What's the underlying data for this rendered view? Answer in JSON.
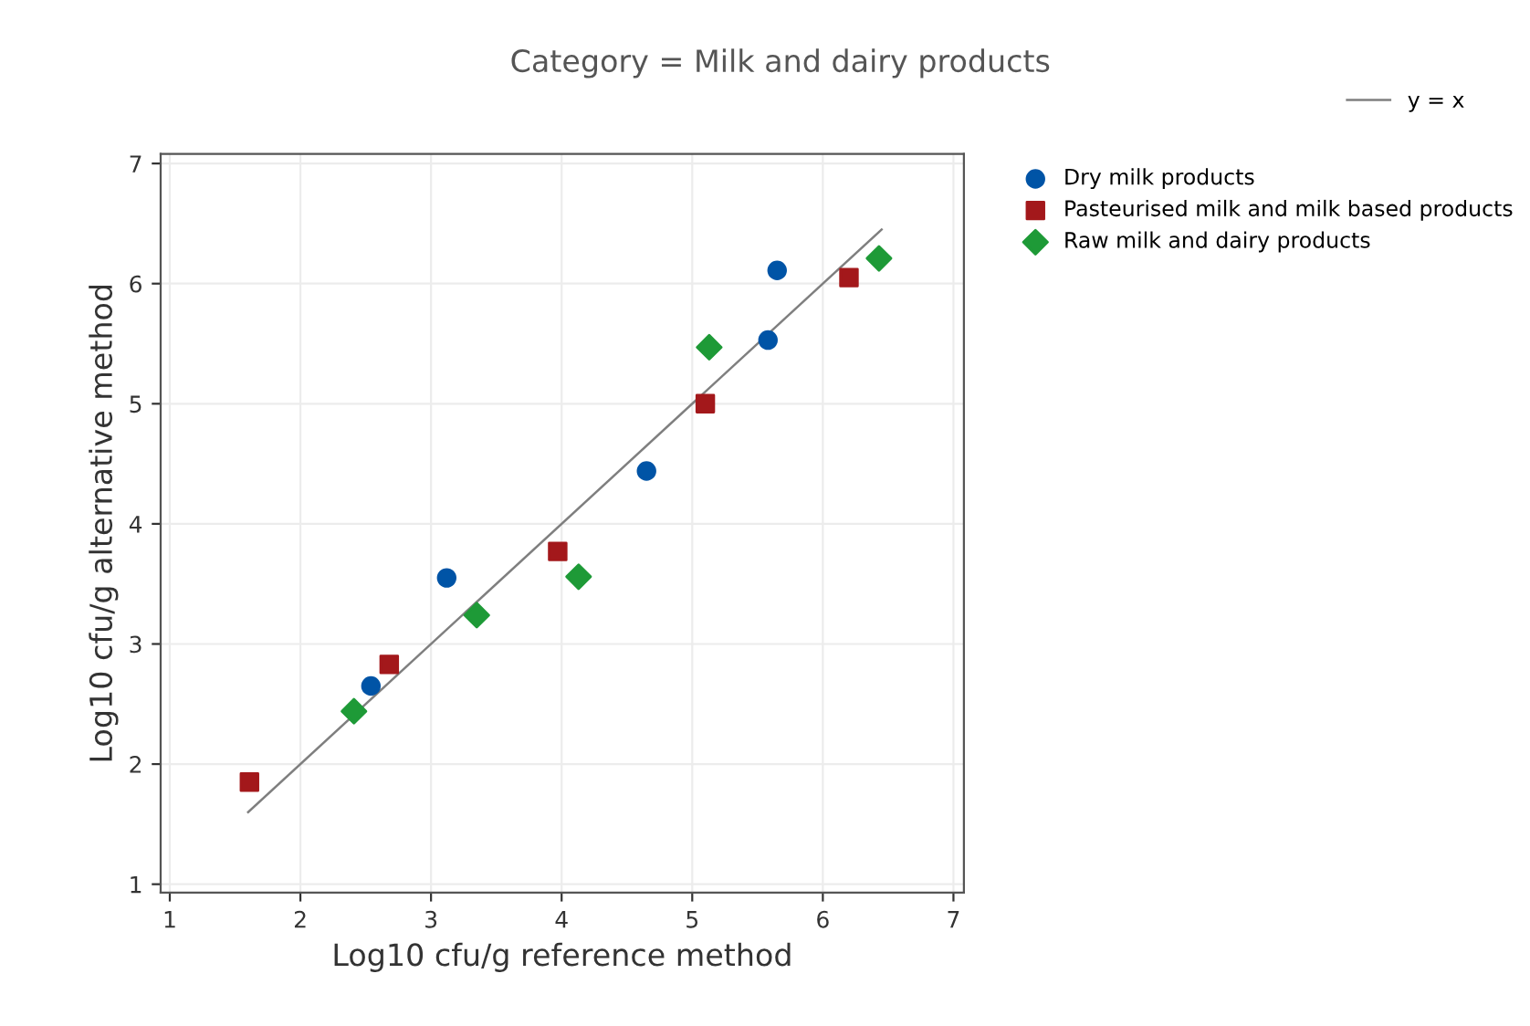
{
  "chart_data": {
    "type": "scatter",
    "title": "Category = Milk and dairy products",
    "xlabel": "Log10 cfu/g reference method",
    "ylabel": "Log10 cfu/g alternative method",
    "xlim": [
      0.93,
      7.08
    ],
    "ylim": [
      0.93,
      7.08
    ],
    "xticks": [
      1,
      2,
      3,
      4,
      5,
      6,
      7
    ],
    "yticks": [
      1,
      2,
      3,
      4,
      5,
      6,
      7
    ],
    "grid": true,
    "legend": "right",
    "series": [
      {
        "name": "y = x",
        "type": "line",
        "color": "#7f7f7f",
        "x": [
          1.6,
          6.45
        ],
        "values": [
          1.6,
          6.45
        ]
      },
      {
        "name": "Dry milk products",
        "marker": "circle",
        "color": "#0054a6",
        "x": [
          2.54,
          3.12,
          4.65,
          5.58,
          5.65
        ],
        "values": [
          2.65,
          3.55,
          4.44,
          5.53,
          6.11
        ]
      },
      {
        "name": "Pasteurised milk and milk based products",
        "marker": "square",
        "color": "#a3181b",
        "x": [
          1.61,
          2.68,
          3.97,
          5.1,
          6.2
        ],
        "values": [
          1.85,
          2.83,
          3.77,
          5.0,
          6.05
        ]
      },
      {
        "name": "Raw milk and dairy products",
        "marker": "diamond",
        "color": "#1e9a37",
        "x": [
          2.41,
          3.35,
          4.13,
          5.13,
          6.43
        ],
        "values": [
          2.44,
          3.24,
          3.56,
          5.47,
          6.21
        ]
      }
    ]
  }
}
